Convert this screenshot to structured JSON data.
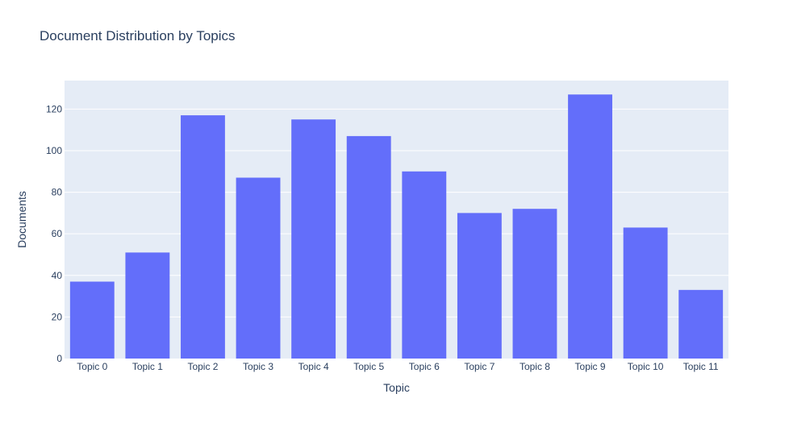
{
  "chart_data": {
    "type": "bar",
    "title": "Document Distribution by Topics",
    "xlabel": "Topic",
    "ylabel": "Documents",
    "categories": [
      "Topic 0",
      "Topic 1",
      "Topic 2",
      "Topic 3",
      "Topic 4",
      "Topic 5",
      "Topic 6",
      "Topic 7",
      "Topic 8",
      "Topic 9",
      "Topic 10",
      "Topic 11"
    ],
    "values": [
      37,
      51,
      117,
      87,
      115,
      107,
      90,
      70,
      72,
      127,
      63,
      33
    ],
    "ylim": [
      0,
      133.7
    ],
    "yticks": [
      0,
      20,
      40,
      60,
      80,
      100,
      120
    ],
    "grid": true,
    "legend": "none",
    "colors": {
      "bar": "#636efa",
      "plot_background": "#e5ecf6",
      "gridline": "#ffffff",
      "text": "#2a3f5f"
    }
  }
}
